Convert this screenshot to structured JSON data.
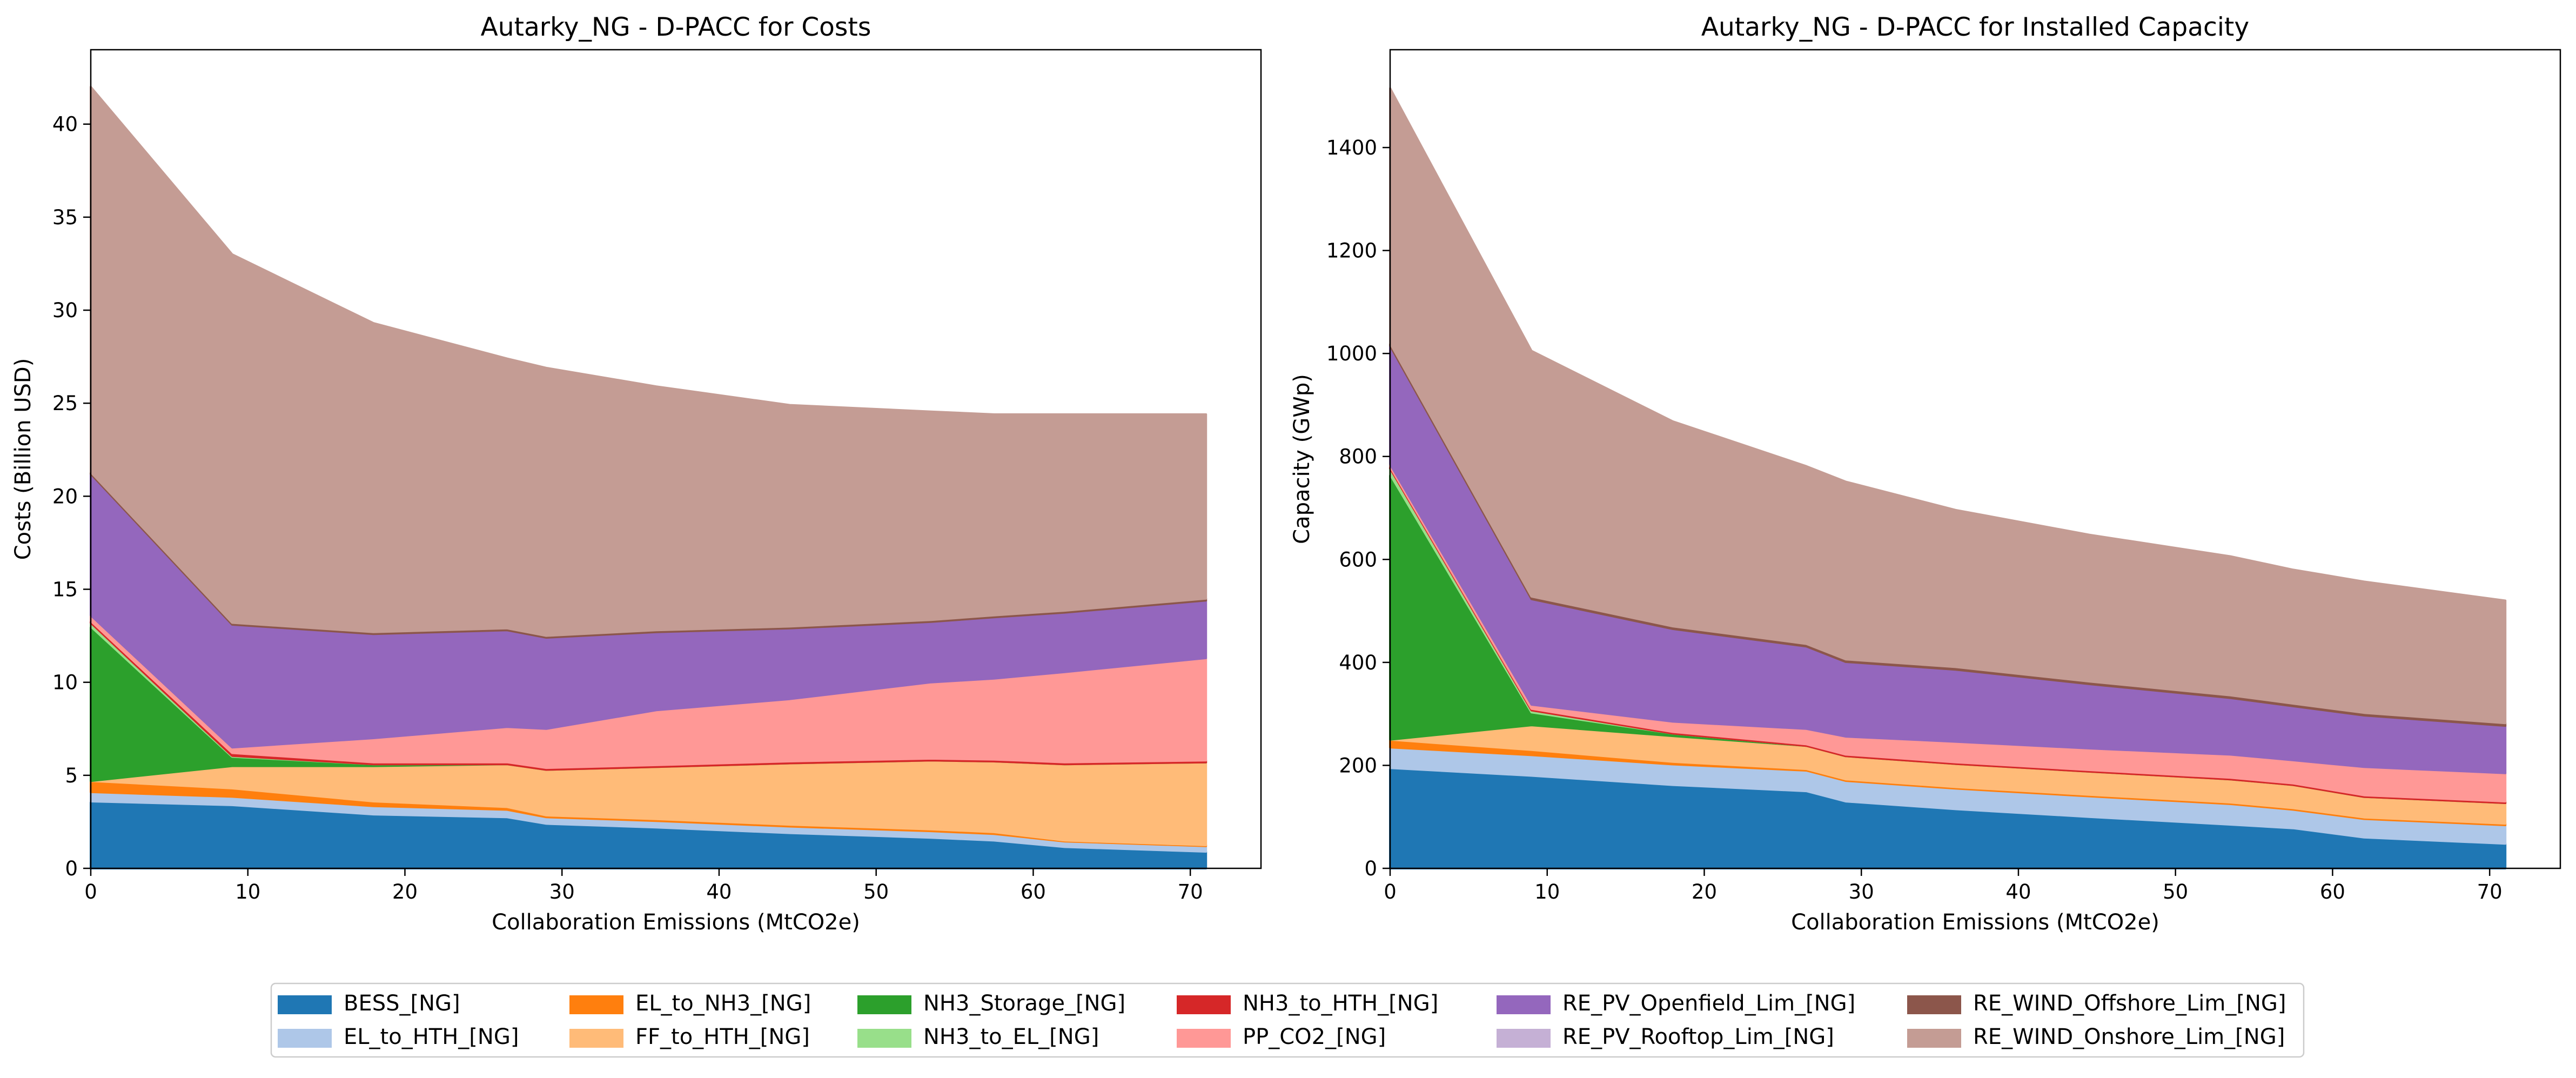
{
  "legend": {
    "placement": "bottom-center",
    "columns": 6,
    "entries": [
      {
        "label": "BESS_[NG]",
        "color": "#1f77b4"
      },
      {
        "label": "EL_to_HTH_[NG]",
        "color": "#aec7e8"
      },
      {
        "label": "EL_to_NH3_[NG]",
        "color": "#ff7f0e"
      },
      {
        "label": "FF_to_HTH_[NG]",
        "color": "#ffbb78"
      },
      {
        "label": "NH3_Storage_[NG]",
        "color": "#2ca02c"
      },
      {
        "label": "NH3_to_EL_[NG]",
        "color": "#98df8a"
      },
      {
        "label": "NH3_to_HTH_[NG]",
        "color": "#d62728"
      },
      {
        "label": "PP_CO2_[NG]",
        "color": "#ff9896"
      },
      {
        "label": "RE_PV_Openfield_Lim_[NG]",
        "color": "#9467bd"
      },
      {
        "label": "RE_PV_Rooftop_Lim_[NG]",
        "color": "#c5b0d5"
      },
      {
        "label": "RE_WIND_Offshore_Lim_[NG]",
        "color": "#8c564b"
      },
      {
        "label": "RE_WIND_Onshore_Lim_[NG]",
        "color": "#c49c94"
      }
    ]
  },
  "chart_data": [
    {
      "type": "area",
      "stacked": true,
      "title": "Autarky_NG - D-PACC for Costs",
      "xlabel": "Collaboration Emissions (MtCO2e)",
      "ylabel": "Costs (Billion USD)",
      "xlim": [
        0,
        74.5
      ],
      "ylim": [
        0,
        44
      ],
      "xticks": [
        0,
        10,
        20,
        30,
        40,
        50,
        60,
        70
      ],
      "yticks": [
        0,
        5,
        10,
        15,
        20,
        25,
        30,
        35,
        40
      ],
      "grid": false,
      "x": [
        0,
        9,
        18,
        26.5,
        29,
        36,
        44.5,
        53.5,
        57.5,
        62,
        71
      ],
      "series": [
        {
          "name": "BESS_[NG]",
          "color": "#1f77b4",
          "values": [
            3.6,
            3.4,
            2.9,
            2.75,
            2.4,
            2.2,
            1.9,
            1.65,
            1.5,
            1.15,
            0.9
          ]
        },
        {
          "name": "EL_to_HTH_[NG]",
          "color": "#aec7e8",
          "values": [
            0.5,
            0.45,
            0.45,
            0.4,
            0.35,
            0.35,
            0.35,
            0.35,
            0.35,
            0.3,
            0.3
          ]
        },
        {
          "name": "EL_to_NH3_[NG]",
          "color": "#ff7f0e",
          "values": [
            0.6,
            0.45,
            0.25,
            0.15,
            0.1,
            0.1,
            0.1,
            0.1,
            0.1,
            0.05,
            0.05
          ]
        },
        {
          "name": "FF_to_HTH_[NG]",
          "color": "#ffbb78",
          "values": [
            0,
            1.2,
            1.9,
            2.3,
            2.45,
            2.8,
            3.3,
            3.7,
            3.8,
            4.1,
            4.45
          ]
        },
        {
          "name": "NH3_Storage_[NG]",
          "color": "#2ca02c",
          "values": [
            8.3,
            0.5,
            0.1,
            0,
            0,
            0,
            0,
            0,
            0,
            0,
            0
          ]
        },
        {
          "name": "NH3_to_EL_[NG]",
          "color": "#98df8a",
          "values": [
            0.2,
            0.05,
            0,
            0,
            0,
            0,
            0,
            0,
            0,
            0,
            0
          ]
        },
        {
          "name": "NH3_to_HTH_[NG]",
          "color": "#d62728",
          "values": [
            0.1,
            0.15,
            0.1,
            0.1,
            0.1,
            0.1,
            0.1,
            0.1,
            0.1,
            0.1,
            0.1
          ]
        },
        {
          "name": "PP_CO2_[NG]",
          "color": "#ff9896",
          "values": [
            0.3,
            0.3,
            1.3,
            1.9,
            2.1,
            2.95,
            3.35,
            4.1,
            4.35,
            4.85,
            5.5
          ]
        },
        {
          "name": "RE_PV_Openfield_Lim_[NG]",
          "color": "#9467bd",
          "values": [
            7.6,
            6.6,
            5.6,
            5.2,
            4.9,
            4.2,
            3.8,
            3.25,
            3.3,
            3.2,
            3.1
          ]
        },
        {
          "name": "RE_PV_Rooftop_Lim_[NG]",
          "color": "#c5b0d5",
          "values": [
            0,
            0,
            0,
            0,
            0,
            0,
            0,
            0,
            0,
            0,
            0
          ]
        },
        {
          "name": "RE_WIND_Offshore_Lim_[NG]",
          "color": "#8c564b",
          "values": [
            0.1,
            0.1,
            0.1,
            0.1,
            0.1,
            0.1,
            0.1,
            0.1,
            0.1,
            0.1,
            0.1
          ]
        },
        {
          "name": "RE_WIND_Onshore_Lim_[NG]",
          "color": "#c49c94",
          "values": [
            20.7,
            19.8,
            16.6,
            14.5,
            14.4,
            13.1,
            11.9,
            11.2,
            10.8,
            10.55,
            9.9
          ]
        }
      ]
    },
    {
      "type": "area",
      "stacked": true,
      "title": "Autarky_NG - D-PACC for Installed Capacity",
      "xlabel": "Collaboration Emissions (MtCO2e)",
      "ylabel": "Capacity (GWp)",
      "xlim": [
        0,
        74.5
      ],
      "ylim": [
        0,
        1590
      ],
      "xticks": [
        0,
        10,
        20,
        30,
        40,
        50,
        60,
        70
      ],
      "yticks": [
        0,
        200,
        400,
        600,
        800,
        1000,
        1200,
        1400
      ],
      "grid": false,
      "x": [
        0,
        9,
        18,
        26.5,
        29,
        36,
        44.5,
        53.5,
        57.5,
        62,
        71
      ],
      "series": [
        {
          "name": "BESS_[NG]",
          "color": "#1f77b4",
          "values": [
            195,
            180,
            162,
            150,
            130,
            115,
            100,
            85,
            78,
            60,
            48
          ]
        },
        {
          "name": "EL_to_HTH_[NG]",
          "color": "#aec7e8",
          "values": [
            40,
            40,
            40,
            40,
            40,
            40,
            40,
            40,
            36,
            36,
            36
          ]
        },
        {
          "name": "EL_to_NH3_[NG]",
          "color": "#ff7f0e",
          "values": [
            15,
            10,
            5,
            3,
            3,
            3,
            3,
            3,
            3,
            3,
            3
          ]
        },
        {
          "name": "FF_to_HTH_[NG]",
          "color": "#ffbb78",
          "values": [
            0,
            48,
            50,
            45,
            45,
            45,
            45,
            45,
            45,
            40,
            40
          ]
        },
        {
          "name": "NH3_Storage_[NG]",
          "color": "#2ca02c",
          "values": [
            515,
            25,
            5,
            0,
            0,
            0,
            0,
            0,
            0,
            0,
            0
          ]
        },
        {
          "name": "NH3_to_EL_[NG]",
          "color": "#98df8a",
          "values": [
            12,
            4,
            0,
            0,
            0,
            0,
            0,
            0,
            0,
            0,
            0
          ]
        },
        {
          "name": "NH3_to_HTH_[NG]",
          "color": "#d62728",
          "values": [
            3,
            3,
            3,
            3,
            3,
            3,
            3,
            3,
            3,
            3,
            3
          ]
        },
        {
          "name": "PP_CO2_[NG]",
          "color": "#ff9896",
          "values": [
            5,
            8,
            20,
            30,
            35,
            40,
            42,
            45,
            45,
            55,
            55
          ]
        },
        {
          "name": "RE_PV_Openfield_Lim_[NG]",
          "color": "#9467bd",
          "values": [
            230,
            205,
            180,
            160,
            145,
            140,
            125,
            110,
            105,
            100,
            92
          ]
        },
        {
          "name": "RE_PV_Rooftop_Lim_[NG]",
          "color": "#c5b0d5",
          "values": [
            0,
            0,
            0,
            0,
            0,
            0,
            0,
            0,
            0,
            0,
            0
          ]
        },
        {
          "name": "RE_WIND_Offshore_Lim_[NG]",
          "color": "#8c564b",
          "values": [
            5,
            5,
            5,
            5,
            5,
            5,
            5,
            5,
            5,
            5,
            5
          ]
        },
        {
          "name": "RE_WIND_Onshore_Lim_[NG]",
          "color": "#c49c94",
          "values": [
            495,
            477,
            398,
            345,
            345,
            305,
            285,
            270,
            260,
            255,
            238
          ]
        }
      ]
    }
  ]
}
